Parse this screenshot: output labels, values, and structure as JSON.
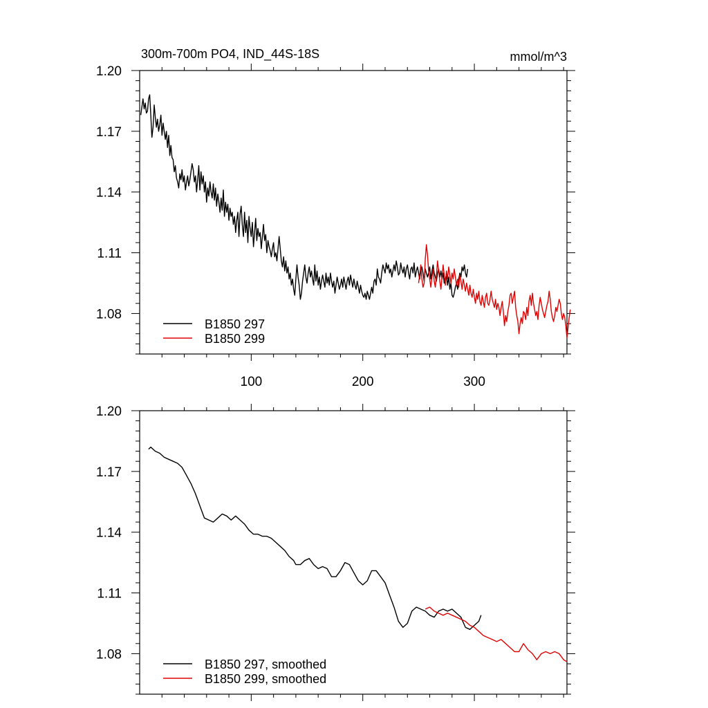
{
  "chart_data": [
    {
      "type": "line",
      "title": "300m-700m PO4, IND_44S-18S",
      "units": "mmol/m^3",
      "xlim": [
        0,
        383
      ],
      "ylim": [
        1.06,
        1.2
      ],
      "yticks": [
        "1.20",
        "1.17",
        "1.14",
        "1.11",
        "1.08"
      ],
      "xticks": [
        "100",
        "200",
        "300"
      ],
      "series": [
        {
          "name": "B1850 297",
          "color": "#000000",
          "x_start": 1,
          "values": [
            1.178,
            1.182,
            1.186,
            1.181,
            1.184,
            1.179,
            1.18,
            1.186,
            1.188,
            1.178,
            1.167,
            1.172,
            1.183,
            1.177,
            1.172,
            1.176,
            1.17,
            1.173,
            1.178,
            1.168,
            1.174,
            1.17,
            1.166,
            1.17,
            1.162,
            1.168,
            1.158,
            1.163,
            1.157,
            1.156,
            1.15,
            1.153,
            1.147,
            1.145,
            1.142,
            1.149,
            1.146,
            1.151,
            1.145,
            1.148,
            1.141,
            1.145,
            1.148,
            1.143,
            1.146,
            1.15,
            1.154,
            1.151,
            1.145,
            1.148,
            1.14,
            1.146,
            1.153,
            1.141,
            1.15,
            1.144,
            1.148,
            1.14,
            1.145,
            1.135,
            1.142,
            1.138,
            1.145,
            1.14,
            1.137,
            1.144,
            1.136,
            1.142,
            1.133,
            1.139,
            1.135,
            1.13,
            1.137,
            1.131,
            1.141,
            1.128,
            1.135,
            1.13,
            1.134,
            1.126,
            1.132,
            1.128,
            1.13,
            1.124,
            1.128,
            1.12,
            1.126,
            1.13,
            1.118,
            1.129,
            1.133,
            1.124,
            1.118,
            1.13,
            1.12,
            1.126,
            1.115,
            1.128,
            1.122,
            1.118,
            1.125,
            1.113,
            1.12,
            1.127,
            1.116,
            1.122,
            1.118,
            1.12,
            1.112,
            1.118,
            1.124,
            1.116,
            1.119,
            1.11,
            1.116,
            1.113,
            1.111,
            1.108,
            1.112,
            1.115,
            1.108,
            1.11,
            1.106,
            1.112,
            1.118,
            1.112,
            1.106,
            1.103,
            1.108,
            1.101,
            1.106,
            1.1,
            1.103,
            1.097,
            1.1,
            1.094,
            1.097,
            1.092,
            1.089,
            1.097,
            1.104,
            1.098,
            1.094,
            1.087,
            1.09,
            1.096,
            1.1,
            1.104,
            1.098,
            1.095,
            1.1,
            1.103,
            1.098,
            1.101,
            1.097,
            1.094,
            1.104,
            1.096,
            1.101,
            1.094,
            1.098,
            1.092,
            1.096,
            1.099,
            1.096,
            1.093,
            1.1,
            1.095,
            1.098,
            1.094,
            1.1,
            1.096,
            1.093,
            1.096,
            1.09,
            1.094,
            1.098,
            1.095,
            1.092,
            1.094,
            1.097,
            1.093,
            1.098,
            1.095,
            1.092,
            1.096,
            1.098,
            1.094,
            1.099,
            1.096,
            1.093,
            1.097,
            1.094,
            1.092,
            1.096,
            1.093,
            1.09,
            1.094,
            1.091,
            1.089,
            1.088,
            1.09,
            1.087,
            1.091,
            1.089,
            1.087,
            1.09,
            1.093,
            1.09,
            1.096,
            1.097,
            1.094,
            1.102,
            1.098,
            1.097,
            1.095,
            1.1,
            1.104,
            1.102,
            1.1,
            1.105,
            1.102,
            1.104,
            1.1,
            1.102,
            1.098,
            1.101,
            1.104,
            1.101,
            1.106,
            1.103,
            1.099,
            1.1,
            1.105,
            1.102,
            1.1,
            1.103,
            1.098,
            1.102,
            1.104,
            1.1,
            1.097,
            1.102,
            1.103,
            1.1,
            1.105,
            1.098,
            1.101,
            1.103,
            1.1,
            1.097,
            1.101,
            1.103,
            1.1,
            1.096,
            1.102,
            1.1,
            1.098,
            1.1,
            1.103,
            1.097,
            1.101,
            1.104,
            1.1,
            1.098,
            1.096,
            1.1,
            1.102,
            1.098,
            1.101,
            1.097,
            1.1,
            1.095,
            1.097,
            1.099,
            1.094,
            1.098,
            1.092,
            1.095,
            1.089,
            1.088,
            1.09,
            1.093,
            1.095,
            1.092,
            1.097,
            1.1,
            1.098,
            1.103,
            1.101,
            1.104,
            1.1,
            1.098,
            1.102
          ]
        },
        {
          "name": "B1850 299",
          "color": "#e00000",
          "x_start": 250,
          "values": [
            1.095,
            1.099,
            1.104,
            1.097,
            1.093,
            1.095,
            1.107,
            1.114,
            1.109,
            1.101,
            1.097,
            1.093,
            1.098,
            1.102,
            1.096,
            1.093,
            1.099,
            1.106,
            1.101,
            1.096,
            1.092,
            1.098,
            1.104,
            1.099,
            1.094,
            1.101,
            1.097,
            1.103,
            1.099,
            1.095,
            1.1,
            1.097,
            1.102,
            1.098,
            1.094,
            1.097,
            1.093,
            1.099,
            1.096,
            1.092,
            1.097,
            1.094,
            1.091,
            1.095,
            1.092,
            1.089,
            1.094,
            1.09,
            1.088,
            1.092,
            1.088,
            1.085,
            1.09,
            1.087,
            1.091,
            1.086,
            1.084,
            1.089,
            1.086,
            1.083,
            1.088,
            1.09,
            1.085,
            1.084,
            1.087,
            1.091,
            1.087,
            1.085,
            1.083,
            1.087,
            1.082,
            1.085,
            1.083,
            1.079,
            1.083,
            1.086,
            1.081,
            1.074,
            1.079,
            1.076,
            1.081,
            1.084,
            1.089,
            1.09,
            1.085,
            1.088,
            1.091,
            1.083,
            1.079,
            1.076,
            1.07,
            1.075,
            1.078,
            1.075,
            1.081,
            1.08,
            1.077,
            1.083,
            1.079,
            1.086,
            1.089,
            1.084,
            1.09,
            1.085,
            1.082,
            1.079,
            1.081,
            1.077,
            1.084,
            1.088,
            1.085,
            1.082,
            1.08,
            1.078,
            1.081,
            1.084,
            1.086,
            1.091,
            1.087,
            1.081,
            1.078,
            1.076,
            1.079,
            1.083,
            1.081,
            1.084,
            1.087,
            1.085,
            1.08,
            1.077,
            1.08,
            1.078,
            1.074,
            1.068,
            1.073,
            1.078,
            1.082
          ]
        }
      ]
    },
    {
      "type": "line",
      "xlim": [
        0,
        383
      ],
      "ylim": [
        1.06,
        1.2
      ],
      "yticks": [
        "1.20",
        "1.17",
        "1.14",
        "1.11",
        "1.08"
      ],
      "xticks": [],
      "series": [
        {
          "name": "B1850 297, smoothed",
          "color": "#000000",
          "points": [
            [
              8,
              1.181
            ],
            [
              10,
              1.182
            ],
            [
              14,
              1.18
            ],
            [
              18,
              1.179
            ],
            [
              22,
              1.177
            ],
            [
              26,
              1.176
            ],
            [
              30,
              1.175
            ],
            [
              34,
              1.174
            ],
            [
              38,
              1.172
            ],
            [
              42,
              1.168
            ],
            [
              46,
              1.164
            ],
            [
              50,
              1.159
            ],
            [
              54,
              1.153
            ],
            [
              58,
              1.147
            ],
            [
              62,
              1.146
            ],
            [
              66,
              1.145
            ],
            [
              70,
              1.147
            ],
            [
              74,
              1.149
            ],
            [
              78,
              1.148
            ],
            [
              82,
              1.146
            ],
            [
              86,
              1.148
            ],
            [
              90,
              1.146
            ],
            [
              94,
              1.144
            ],
            [
              98,
              1.141
            ],
            [
              102,
              1.139
            ],
            [
              106,
              1.139
            ],
            [
              110,
              1.138
            ],
            [
              114,
              1.138
            ],
            [
              118,
              1.137
            ],
            [
              122,
              1.135
            ],
            [
              126,
              1.133
            ],
            [
              130,
              1.131
            ],
            [
              134,
              1.128
            ],
            [
              138,
              1.126
            ],
            [
              140,
              1.124
            ],
            [
              144,
              1.124
            ],
            [
              148,
              1.126
            ],
            [
              152,
              1.127
            ],
            [
              156,
              1.124
            ],
            [
              160,
              1.122
            ],
            [
              164,
              1.123
            ],
            [
              168,
              1.122
            ],
            [
              172,
              1.118
            ],
            [
              176,
              1.118
            ],
            [
              180,
              1.121
            ],
            [
              184,
              1.125
            ],
            [
              188,
              1.124
            ],
            [
              192,
              1.12
            ],
            [
              196,
              1.116
            ],
            [
              200,
              1.114
            ],
            [
              204,
              1.116
            ],
            [
              208,
              1.121
            ],
            [
              212,
              1.121
            ],
            [
              216,
              1.118
            ],
            [
              220,
              1.115
            ],
            [
              224,
              1.109
            ],
            [
              228,
              1.103
            ],
            [
              232,
              1.096
            ],
            [
              236,
              1.093
            ],
            [
              240,
              1.095
            ],
            [
              244,
              1.101
            ],
            [
              248,
              1.103
            ],
            [
              252,
              1.102
            ],
            [
              256,
              1.101
            ],
            [
              260,
              1.099
            ],
            [
              264,
              1.098
            ],
            [
              268,
              1.101
            ],
            [
              272,
              1.102
            ],
            [
              276,
              1.101
            ],
            [
              280,
              1.102
            ],
            [
              284,
              1.1
            ],
            [
              288,
              1.098
            ],
            [
              292,
              1.093
            ],
            [
              296,
              1.092
            ],
            [
              300,
              1.094
            ],
            [
              304,
              1.096
            ],
            [
              306,
              1.099
            ]
          ]
        },
        {
          "name": "B1850 299, smoothed",
          "color": "#e00000",
          "points": [
            [
              256,
              1.102
            ],
            [
              260,
              1.103
            ],
            [
              264,
              1.101
            ],
            [
              268,
              1.1
            ],
            [
              272,
              1.099
            ],
            [
              276,
              1.1
            ],
            [
              280,
              1.099
            ],
            [
              284,
              1.098
            ],
            [
              288,
              1.097
            ],
            [
              292,
              1.096
            ],
            [
              296,
              1.094
            ],
            [
              300,
              1.093
            ],
            [
              304,
              1.091
            ],
            [
              308,
              1.089
            ],
            [
              312,
              1.088
            ],
            [
              316,
              1.087
            ],
            [
              320,
              1.086
            ],
            [
              324,
              1.087
            ],
            [
              328,
              1.085
            ],
            [
              332,
              1.083
            ],
            [
              336,
              1.081
            ],
            [
              340,
              1.081
            ],
            [
              344,
              1.085
            ],
            [
              348,
              1.082
            ],
            [
              352,
              1.08
            ],
            [
              356,
              1.077
            ],
            [
              360,
              1.08
            ],
            [
              364,
              1.081
            ],
            [
              368,
              1.08
            ],
            [
              372,
              1.081
            ],
            [
              376,
              1.08
            ],
            [
              380,
              1.077
            ],
            [
              383,
              1.076
            ]
          ]
        }
      ]
    }
  ]
}
